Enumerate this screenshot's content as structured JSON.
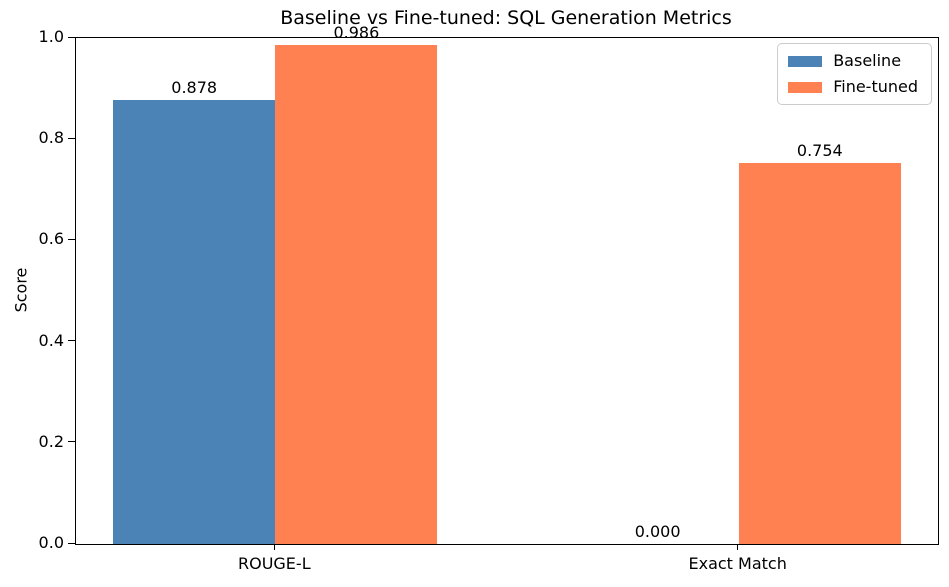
{
  "chart_data": {
    "type": "bar",
    "title": "Baseline vs Fine-tuned: SQL Generation Metrics",
    "xlabel": "",
    "ylabel": "Score",
    "categories": [
      "ROUGE-L",
      "Exact Match"
    ],
    "series": [
      {
        "name": "Baseline",
        "color": "#4B83B7",
        "values": [
          0.878,
          0.0
        ],
        "value_labels": [
          "0.878",
          "0.000"
        ]
      },
      {
        "name": "Fine-tuned",
        "color": "#FF8050",
        "values": [
          0.986,
          0.754
        ],
        "value_labels": [
          "0.986",
          "0.754"
        ]
      }
    ],
    "ylim": [
      0.0,
      1.0
    ],
    "yticks": [
      "0.0",
      "0.2",
      "0.4",
      "0.6",
      "0.8",
      "1.0"
    ],
    "grid": false,
    "legend_position": "upper right",
    "bar_width_units": 0.35,
    "xlim_units": [
      -0.43,
      1.43
    ]
  }
}
